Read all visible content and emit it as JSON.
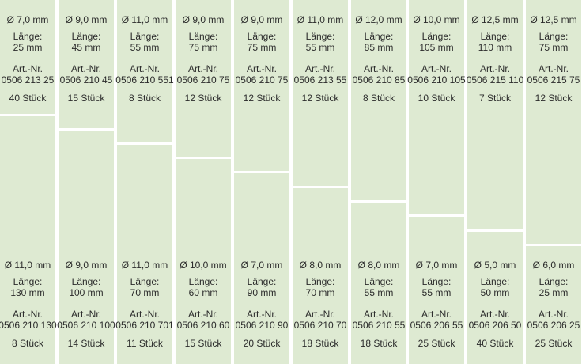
{
  "colors": {
    "cell": "#deead2",
    "divider": "#ffffff",
    "text": "#2b2b2b"
  },
  "columns": [
    {
      "top": {
        "diameter": "Ø 7,0 mm",
        "length_label": "Länge:",
        "length": "25 mm",
        "art_label": "Art.-Nr.",
        "art_no": "0506 213 25",
        "qty": "40 Stück"
      },
      "bottom": {
        "diameter": "Ø 11,0 mm",
        "length_label": "Länge:",
        "length": "130 mm",
        "art_label": "Art.-Nr.",
        "art_no": "0506 210 130",
        "qty": "8 Stück"
      }
    },
    {
      "top": {
        "diameter": "Ø 9,0 mm",
        "length_label": "Länge:",
        "length": "45 mm",
        "art_label": "Art.-Nr.",
        "art_no": "0506 210 45",
        "qty": "15 Stück"
      },
      "bottom": {
        "diameter": "Ø 9,0 mm",
        "length_label": "Länge:",
        "length": "100 mm",
        "art_label": "Art.-Nr.",
        "art_no": "0506 210 100",
        "qty": "14 Stück"
      }
    },
    {
      "top": {
        "diameter": "Ø 11,0 mm",
        "length_label": "Länge:",
        "length": "55 mm",
        "art_label": "Art.-Nr.",
        "art_no": "0506 210 551",
        "qty": "8 Stück"
      },
      "bottom": {
        "diameter": "Ø 11,0 mm",
        "length_label": "Länge:",
        "length": "70 mm",
        "art_label": "Art.-Nr.",
        "art_no": "0506 210 701",
        "qty": "11 Stück"
      }
    },
    {
      "top": {
        "diameter": "Ø 9,0 mm",
        "length_label": "Länge:",
        "length": "75 mm",
        "art_label": "Art.-Nr.",
        "art_no": "0506 210 75",
        "qty": "12 Stück"
      },
      "bottom": {
        "diameter": "Ø 10,0 mm",
        "length_label": "Länge:",
        "length": "60 mm",
        "art_label": "Art.-Nr.",
        "art_no": "0506 210 60",
        "qty": "15 Stück"
      }
    },
    {
      "top": {
        "diameter": "Ø 9,0 mm",
        "length_label": "Länge:",
        "length": "75 mm",
        "art_label": "Art.-Nr.",
        "art_no": "0506 210 75",
        "qty": "12 Stück"
      },
      "bottom": {
        "diameter": "Ø 7,0 mm",
        "length_label": "Länge:",
        "length": "90 mm",
        "art_label": "Art.-Nr.",
        "art_no": "0506 210 90",
        "qty": "20 Stück"
      }
    },
    {
      "top": {
        "diameter": "Ø 11,0 mm",
        "length_label": "Länge:",
        "length": "55 mm",
        "art_label": "Art.-Nr.",
        "art_no": "0506 213 55",
        "qty": "12 Stück"
      },
      "bottom": {
        "diameter": "Ø 8,0 mm",
        "length_label": "Länge:",
        "length": "70 mm",
        "art_label": "Art.-Nr.",
        "art_no": "0506 210 70",
        "qty": "18 Stück"
      }
    },
    {
      "top": {
        "diameter": "Ø 12,0 mm",
        "length_label": "Länge:",
        "length": "85 mm",
        "art_label": "Art.-Nr.",
        "art_no": "0506 210 85",
        "qty": "8 Stück"
      },
      "bottom": {
        "diameter": "Ø 8,0 mm",
        "length_label": "Länge:",
        "length": "55 mm",
        "art_label": "Art.-Nr.",
        "art_no": "0506 210 55",
        "qty": "18 Stück"
      }
    },
    {
      "top": {
        "diameter": "Ø 10,0 mm",
        "length_label": "Länge:",
        "length": "105 mm",
        "art_label": "Art.-Nr.",
        "art_no": "0506 210 105",
        "qty": "10 Stück"
      },
      "bottom": {
        "diameter": "Ø 7,0 mm",
        "length_label": "Länge:",
        "length": "55 mm",
        "art_label": "Art.-Nr.",
        "art_no": "0506 206 55",
        "qty": "25 Stück"
      }
    },
    {
      "top": {
        "diameter": "Ø 12,5 mm",
        "length_label": "Länge:",
        "length": "110 mm",
        "art_label": "Art.-Nr.",
        "art_no": "0506 215 110",
        "qty": "7 Stück"
      },
      "bottom": {
        "diameter": "Ø 5,0 mm",
        "length_label": "Länge:",
        "length": "50 mm",
        "art_label": "Art.-Nr.",
        "art_no": "0506 206 50",
        "qty": "40 Stück"
      }
    },
    {
      "top": {
        "diameter": "Ø 12,5 mm",
        "length_label": "Länge:",
        "length": "75 mm",
        "art_label": "Art.-Nr.",
        "art_no": "0506 215 75",
        "qty": "12 Stück"
      },
      "bottom": {
        "diameter": "Ø 6,0 mm",
        "length_label": "Länge:",
        "length": "25 mm",
        "art_label": "Art.-Nr.",
        "art_no": "0506 206 25",
        "qty": "25 Stück"
      }
    }
  ]
}
